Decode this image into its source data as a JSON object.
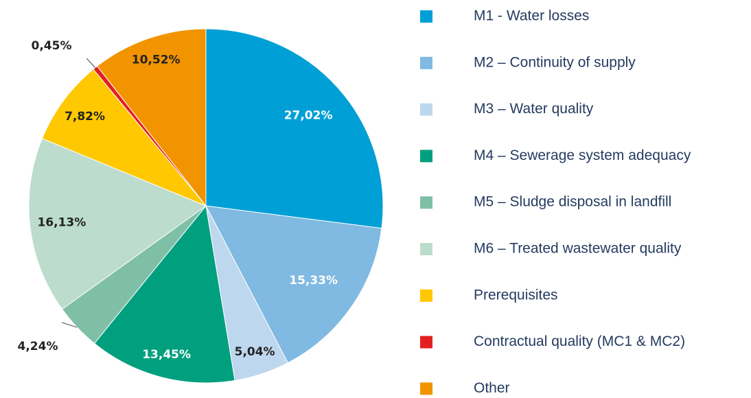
{
  "chart_data": {
    "type": "pie",
    "categories": [
      "M1 - Water losses",
      "M2 – Continuity of supply",
      "M3 – Water quality",
      "M4 – Sewerage system adequacy",
      "M5 – Sludge disposal in landfill",
      "M6 – Treated wastewater quality",
      "Prerequisites",
      "Contractual quality (MC1 & MC2)",
      "Other"
    ],
    "values": [
      27.02,
      15.33,
      5.04,
      13.45,
      4.24,
      16.13,
      7.82,
      0.45,
      10.52
    ],
    "value_labels": [
      "27,02%",
      "15,33%",
      "5,04%",
      "13,45%",
      "4,24%",
      "16,13%",
      "7,82%",
      "0,45%",
      "10,52%"
    ],
    "colors": [
      "#009fd6",
      "#80b9e1",
      "#bdd7ee",
      "#00a07f",
      "#80bfa7",
      "#bcdccd",
      "#ffc800",
      "#e4201f",
      "#f29400"
    ],
    "legend": "right"
  }
}
